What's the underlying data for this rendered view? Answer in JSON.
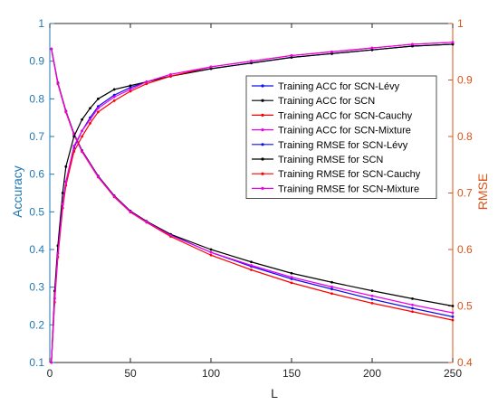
{
  "chart_data": {
    "type": "line",
    "title": "",
    "xlabel": "L",
    "ylabel_left": "Accuracy",
    "ylabel_right": "RMSE",
    "xlim": [
      0,
      250
    ],
    "ylim_left": [
      0.1,
      1.0
    ],
    "ylim_right": [
      0.4,
      1.0
    ],
    "x_ticks": [
      0,
      50,
      100,
      150,
      200,
      250
    ],
    "y_ticks_left": [
      0.1,
      0.2,
      0.3,
      0.4,
      0.5,
      0.6,
      0.7,
      0.8,
      0.9,
      1
    ],
    "y_ticks_right": [
      0.4,
      0.5,
      0.6,
      0.7,
      0.8,
      0.9,
      1
    ],
    "grid": false,
    "legend_position": "upper-right-inset",
    "colors": {
      "left_axis": "#1f77b4",
      "right_axis": "#d95319"
    },
    "series": [
      {
        "name": "Training ACC for SCN-Lévy",
        "axis": "left",
        "color": "#1010ee",
        "x": [
          1,
          3,
          5,
          8,
          10,
          15,
          20,
          25,
          30,
          40,
          50,
          60,
          75,
          100,
          125,
          150,
          175,
          200,
          225,
          250
        ],
        "y": [
          0.1,
          0.27,
          0.39,
          0.52,
          0.58,
          0.67,
          0.715,
          0.75,
          0.78,
          0.81,
          0.83,
          0.845,
          0.86,
          0.88,
          0.895,
          0.91,
          0.92,
          0.93,
          0.94,
          0.945
        ]
      },
      {
        "name": "Training ACC for SCN",
        "axis": "left",
        "color": "#000000",
        "x": [
          1,
          3,
          5,
          8,
          10,
          15,
          20,
          25,
          30,
          40,
          50,
          60,
          75,
          100,
          125,
          150,
          175,
          200,
          225,
          250
        ],
        "y": [
          0.1,
          0.29,
          0.41,
          0.55,
          0.62,
          0.7,
          0.745,
          0.775,
          0.8,
          0.825,
          0.835,
          0.845,
          0.86,
          0.88,
          0.895,
          0.91,
          0.92,
          0.93,
          0.94,
          0.945
        ]
      },
      {
        "name": "Training ACC for SCN-Cauchy",
        "axis": "left",
        "color": "#ff0000",
        "x": [
          1,
          3,
          5,
          8,
          10,
          15,
          20,
          25,
          30,
          40,
          50,
          60,
          75,
          100,
          125,
          150,
          175,
          200,
          225,
          250
        ],
        "y": [
          0.1,
          0.26,
          0.38,
          0.51,
          0.57,
          0.66,
          0.7,
          0.735,
          0.765,
          0.795,
          0.82,
          0.84,
          0.86,
          0.885,
          0.9,
          0.915,
          0.925,
          0.935,
          0.945,
          0.95
        ]
      },
      {
        "name": "Training ACC for SCN-Mixture",
        "axis": "left",
        "color": "#ee00ee",
        "x": [
          1,
          3,
          5,
          8,
          10,
          15,
          20,
          25,
          30,
          40,
          50,
          60,
          75,
          100,
          125,
          150,
          175,
          200,
          225,
          250
        ],
        "y": [
          0.1,
          0.27,
          0.39,
          0.52,
          0.58,
          0.675,
          0.715,
          0.745,
          0.775,
          0.805,
          0.825,
          0.845,
          0.865,
          0.885,
          0.9,
          0.915,
          0.925,
          0.935,
          0.945,
          0.95
        ]
      },
      {
        "name": "Training RMSE for SCN-Lévy",
        "axis": "right",
        "color": "#1010ee",
        "x": [
          1,
          5,
          10,
          15,
          20,
          30,
          40,
          50,
          60,
          75,
          100,
          125,
          150,
          175,
          200,
          225,
          250
        ],
        "y": [
          0.955,
          0.895,
          0.845,
          0.805,
          0.775,
          0.73,
          0.695,
          0.668,
          0.65,
          0.626,
          0.595,
          0.57,
          0.548,
          0.53,
          0.512,
          0.496,
          0.481
        ]
      },
      {
        "name": "Training RMSE for SCN",
        "axis": "right",
        "color": "#000000",
        "x": [
          1,
          5,
          10,
          15,
          20,
          30,
          40,
          50,
          60,
          75,
          100,
          125,
          150,
          175,
          200,
          225,
          250
        ],
        "y": [
          0.955,
          0.895,
          0.845,
          0.805,
          0.775,
          0.73,
          0.695,
          0.668,
          0.65,
          0.627,
          0.6,
          0.578,
          0.558,
          0.542,
          0.527,
          0.513,
          0.5
        ]
      },
      {
        "name": "Training RMSE for SCN-Cauchy",
        "axis": "right",
        "color": "#ff0000",
        "x": [
          1,
          5,
          10,
          15,
          20,
          30,
          40,
          50,
          60,
          75,
          100,
          125,
          150,
          175,
          200,
          225,
          250
        ],
        "y": [
          0.955,
          0.893,
          0.843,
          0.803,
          0.773,
          0.728,
          0.693,
          0.666,
          0.648,
          0.623,
          0.59,
          0.564,
          0.541,
          0.522,
          0.505,
          0.49,
          0.475
        ]
      },
      {
        "name": "Training RMSE for SCN-Mixture",
        "axis": "right",
        "color": "#ee00ee",
        "x": [
          1,
          5,
          10,
          15,
          20,
          30,
          40,
          50,
          60,
          75,
          100,
          125,
          150,
          175,
          200,
          225,
          250
        ],
        "y": [
          0.955,
          0.894,
          0.844,
          0.804,
          0.774,
          0.729,
          0.694,
          0.667,
          0.649,
          0.625,
          0.595,
          0.572,
          0.551,
          0.534,
          0.518,
          0.502,
          0.488
        ]
      }
    ]
  }
}
